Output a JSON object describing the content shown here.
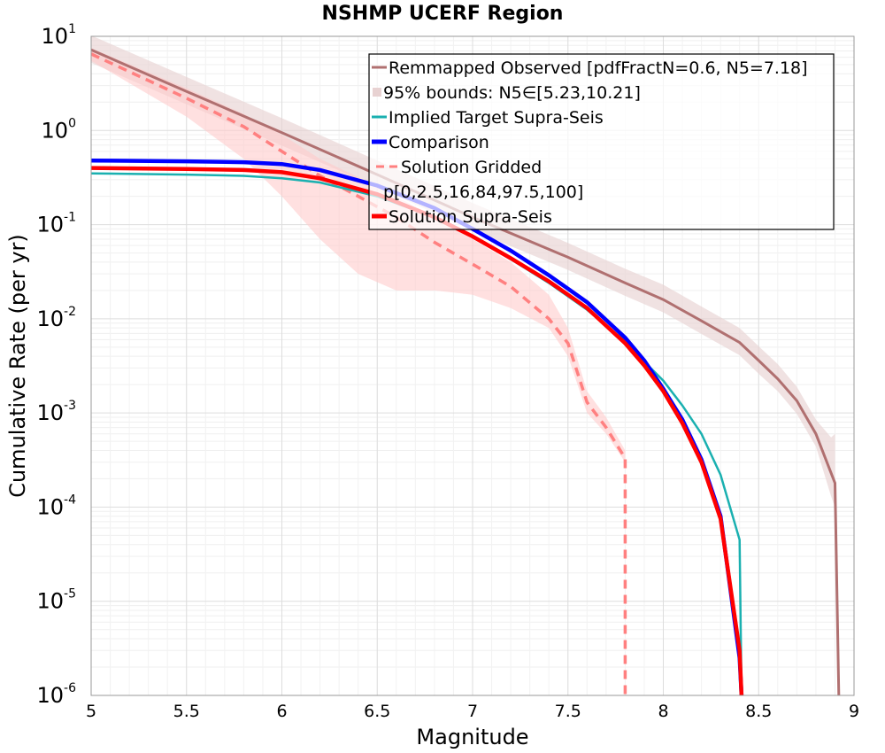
{
  "chart_data": {
    "type": "line",
    "title": "NSHMP UCERF Region",
    "xlabel": "Magnitude",
    "ylabel": "Cumulative Rate (per yr)",
    "xlim": [
      5,
      9
    ],
    "ylim": [
      1e-06,
      10
    ],
    "yscale": "log",
    "grid": true,
    "legend_position": "top-right",
    "xticks": [
      5,
      5.5,
      6,
      6.5,
      7,
      7.5,
      8,
      8.5,
      9
    ],
    "xtick_labels": [
      "5",
      "5.5",
      "6",
      "6.5",
      "7",
      "7.5",
      "8",
      "8.5",
      "9"
    ],
    "yticks": [
      {
        "value": 10,
        "base": "10",
        "exp": "1"
      },
      {
        "value": 1,
        "base": "10",
        "exp": "0"
      },
      {
        "value": 0.1,
        "base": "10",
        "exp": "-1"
      },
      {
        "value": 0.01,
        "base": "10",
        "exp": "-2"
      },
      {
        "value": 0.001,
        "base": "10",
        "exp": "-3"
      },
      {
        "value": 0.0001,
        "base": "10",
        "exp": "-4"
      },
      {
        "value": 1e-05,
        "base": "10",
        "exp": "-5"
      },
      {
        "value": 1e-06,
        "base": "10",
        "exp": "-6"
      }
    ],
    "legend": [
      {
        "label": "Remmapped Observed [pdfFractN=0.6, N5=7.18]",
        "style": "line",
        "color": "#b07070"
      },
      {
        "label": "95% bounds: N5∈[5.23,10.21]",
        "style": "band",
        "color": "#e8d2d2"
      },
      {
        "label": "Implied Target Supra-Seis",
        "style": "line",
        "color": "#1ab0b0"
      },
      {
        "label": "Comparison",
        "style": "thick-line",
        "color": "#0000ff"
      },
      {
        "label": "Solution Gridded",
        "style": "dashed",
        "color": "#ff8080"
      },
      {
        "label": "p[0,2.5,16,84,97.5,100]",
        "style": "none",
        "color": "#ffcccc"
      },
      {
        "label": "Solution Supra-Seis",
        "style": "thick-line",
        "color": "#ff0000"
      }
    ],
    "series": [
      {
        "name": "Remmapped Observed [pdfFractN=0.6, N5=7.18]",
        "color": "#b07070",
        "x": [
          5.0,
          5.5,
          6.0,
          6.5,
          7.0,
          7.5,
          7.8,
          8.0,
          8.2,
          8.4,
          8.5,
          8.6,
          8.7,
          8.8,
          8.9,
          8.92
        ],
        "y": [
          7.18,
          2.6,
          0.95,
          0.34,
          0.12,
          0.045,
          0.024,
          0.016,
          0.0095,
          0.0056,
          0.0036,
          0.0023,
          0.00135,
          0.0006,
          0.00018,
          1e-06
        ]
      },
      {
        "name": "95% bounds: N5∈[5.23,10.21]",
        "color": "#e8d2d2",
        "x": [
          5.0,
          5.5,
          6.0,
          6.5,
          7.0,
          7.5,
          7.8,
          8.0,
          8.2,
          8.4,
          8.5,
          8.6,
          8.7,
          8.8,
          8.88,
          8.9
        ],
        "y_lower": [
          5.23,
          1.9,
          0.69,
          0.25,
          0.087,
          0.033,
          0.0175,
          0.0117,
          0.0069,
          0.0041,
          0.0026,
          0.0017,
          0.00098,
          0.00044,
          0.00013,
          0.0001
        ],
        "y_upper": [
          10.21,
          3.7,
          1.35,
          0.48,
          0.17,
          0.064,
          0.034,
          0.023,
          0.0135,
          0.008,
          0.0051,
          0.0033,
          0.0019,
          0.00085,
          0.00055,
          0.0006
        ]
      },
      {
        "name": "Implied Target Supra-Seis",
        "color": "#1ab0b0",
        "x": [
          5.0,
          5.5,
          5.8,
          6.0,
          6.2,
          6.5,
          6.8,
          7.0,
          7.2,
          7.4,
          7.6,
          7.8,
          7.9,
          8.0,
          8.1,
          8.2,
          8.3,
          8.4,
          8.41
        ],
        "y": [
          0.35,
          0.34,
          0.33,
          0.31,
          0.28,
          0.2,
          0.12,
          0.075,
          0.043,
          0.024,
          0.0125,
          0.0058,
          0.0035,
          0.0022,
          0.0012,
          0.0006,
          0.00022,
          4.5e-05,
          1e-06
        ]
      },
      {
        "name": "Comparison",
        "color": "#0000ff",
        "x": [
          5.0,
          5.5,
          5.8,
          6.0,
          6.2,
          6.5,
          6.8,
          7.0,
          7.2,
          7.4,
          7.6,
          7.8,
          7.9,
          8.0,
          8.1,
          8.2,
          8.3,
          8.4,
          8.41
        ],
        "y": [
          0.48,
          0.47,
          0.46,
          0.44,
          0.38,
          0.26,
          0.15,
          0.09,
          0.053,
          0.029,
          0.015,
          0.0063,
          0.0036,
          0.0018,
          0.00085,
          0.00032,
          8e-05,
          2.5e-06,
          1e-06
        ]
      },
      {
        "name": "Solution Gridded",
        "color": "#ff8080",
        "x": [
          5.0,
          5.5,
          5.8,
          6.0,
          6.2,
          6.4,
          6.6,
          6.8,
          7.0,
          7.2,
          7.4,
          7.5,
          7.6,
          7.7,
          7.8,
          7.8
        ],
        "y": [
          6.5,
          2.2,
          1.1,
          0.6,
          0.33,
          0.2,
          0.12,
          0.065,
          0.038,
          0.022,
          0.01,
          0.0055,
          0.0013,
          0.0007,
          0.00033,
          1e-06
        ]
      },
      {
        "name": "p[0,2.5,16,84,97.5,100]",
        "color": "#ffcccc",
        "x": [
          5.0,
          5.5,
          5.8,
          6.0,
          6.2,
          6.4,
          6.6,
          6.8,
          7.0,
          7.2,
          7.4,
          7.5,
          7.6,
          7.7,
          7.8
        ],
        "y_lower": [
          5.5,
          1.4,
          0.5,
          0.2,
          0.07,
          0.03,
          0.02,
          0.02,
          0.018,
          0.013,
          0.008,
          0.004,
          0.001,
          0.0006,
          0.0003
        ],
        "y_upper": [
          7.5,
          2.8,
          1.5,
          0.9,
          0.5,
          0.32,
          0.2,
          0.12,
          0.07,
          0.04,
          0.018,
          0.008,
          0.0017,
          0.0009,
          0.0004
        ]
      },
      {
        "name": "Solution Supra-Seis",
        "color": "#ff0000",
        "x": [
          5.0,
          5.5,
          5.8,
          6.0,
          6.2,
          6.5,
          6.8,
          7.0,
          7.2,
          7.4,
          7.6,
          7.8,
          7.9,
          8.0,
          8.1,
          8.2,
          8.3,
          8.4,
          8.41
        ],
        "y": [
          0.4,
          0.39,
          0.38,
          0.36,
          0.31,
          0.21,
          0.12,
          0.075,
          0.044,
          0.025,
          0.013,
          0.0055,
          0.0032,
          0.0017,
          0.00078,
          0.0003,
          7.5e-05,
          3e-06,
          1e-06
        ]
      }
    ]
  }
}
